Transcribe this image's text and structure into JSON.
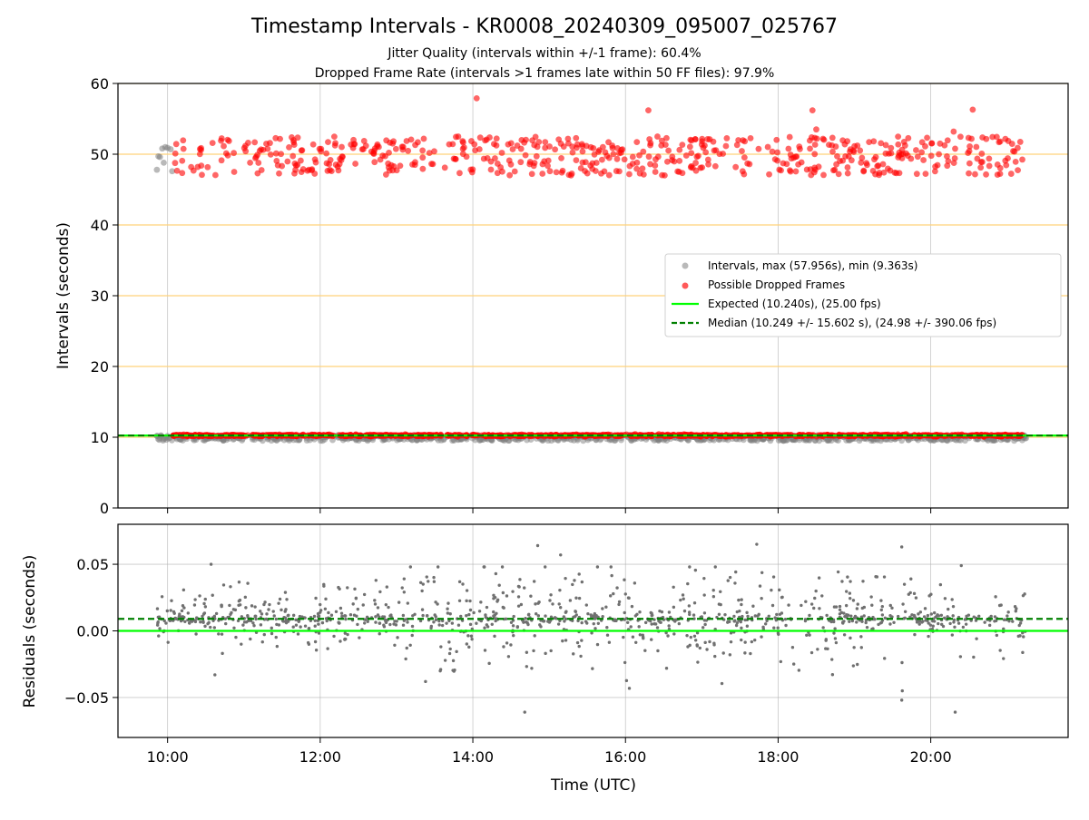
{
  "chart_data": [
    {
      "type": "scatter",
      "title": "Timestamp Intervals - KR0008_20240309_095007_025767",
      "subtitle_lines": [
        "Jitter Quality (intervals within +/-1 frame): 60.4%",
        "Dropped Frame Rate (intervals >1 frames late within 50 FF files): 97.9%"
      ],
      "xlabel": "",
      "ylabel": "Intervals (seconds)",
      "xlim_hours": [
        9.35,
        21.8
      ],
      "ylim": [
        0,
        60
      ],
      "x_ticks": [
        10,
        12,
        14,
        16,
        18,
        20
      ],
      "x_tick_labels": [
        "10:00",
        "12:00",
        "14:00",
        "16:00",
        "18:00",
        "20:00"
      ],
      "y_ticks": [
        0,
        10,
        20,
        30,
        40,
        50,
        60
      ],
      "y_tick_labels": [
        "0",
        "10",
        "20",
        "30",
        "40",
        "50",
        "60"
      ],
      "grid": true,
      "legend_position": "center-right",
      "series": [
        {
          "name": "Intervals, max (57.956s), min (9.363s)",
          "kind": "scatter",
          "color": "#808080",
          "band": {
            "x_start": 9.85,
            "x_end": 21.25,
            "y_min": 9.5,
            "y_max": 10.3
          },
          "early_points": [
            [
              9.86,
              47.8
            ],
            [
              9.88,
              49.7
            ],
            [
              9.9,
              49.6
            ],
            [
              9.93,
              50.8
            ],
            [
              9.95,
              48.8
            ],
            [
              9.97,
              51.0
            ],
            [
              10.0,
              50.9
            ],
            [
              10.04,
              50.7
            ],
            [
              10.06,
              47.6
            ]
          ]
        },
        {
          "name": "Possible Dropped Frames",
          "kind": "scatter",
          "color": "#ff0000",
          "band": {
            "x_start": 10.05,
            "x_end": 21.2,
            "y": 10.25
          },
          "high_cluster": {
            "x_start": 10.08,
            "x_end": 21.2,
            "y_min": 47.0,
            "y_max": 52.5
          },
          "outliers": [
            [
              14.05,
              57.9
            ],
            [
              16.3,
              56.2
            ],
            [
              18.45,
              56.2
            ],
            [
              20.55,
              56.3
            ],
            [
              18.5,
              53.5
            ],
            [
              20.3,
              53.2
            ]
          ]
        },
        {
          "name": "Expected (10.240s), (25.00 fps)",
          "kind": "hline",
          "value": 10.24,
          "color": "#00ff00",
          "style": "solid"
        },
        {
          "name": "Median (10.249 +/- 15.602 s), (24.98 +/- 390.06 fps)",
          "kind": "hline",
          "value": 10.249,
          "color": "#008000",
          "style": "dashed"
        }
      ],
      "reference_lines": [
        10,
        20,
        30,
        40,
        50,
        60
      ],
      "reference_line_color": "#ffd27a"
    },
    {
      "type": "scatter",
      "xlabel": "Time (UTC)",
      "ylabel": "Residuals (seconds)",
      "xlim_hours": [
        9.35,
        21.8
      ],
      "ylim": [
        -0.08,
        0.08
      ],
      "x_ticks": [
        10,
        12,
        14,
        16,
        18,
        20
      ],
      "x_tick_labels": [
        "10:00",
        "12:00",
        "14:00",
        "16:00",
        "18:00",
        "20:00"
      ],
      "y_ticks": [
        -0.05,
        0.0,
        0.05
      ],
      "y_tick_labels": [
        "−0.05",
        "0.00",
        "0.05"
      ],
      "grid": true,
      "series": [
        {
          "name": "residuals",
          "kind": "scatter",
          "color": "#707070",
          "x_range": [
            9.85,
            21.25
          ],
          "notable_points": [
            [
              10.57,
              0.05
            ],
            [
              10.62,
              -0.033
            ],
            [
              14.68,
              -0.061
            ],
            [
              14.85,
              0.064
            ],
            [
              15.15,
              0.057
            ],
            [
              17.72,
              0.065
            ],
            [
              19.62,
              0.063
            ],
            [
              19.62,
              -0.052
            ],
            [
              20.32,
              -0.061
            ],
            [
              20.4,
              0.049
            ],
            [
              13.38,
              -0.038
            ]
          ]
        },
        {
          "name": "expected",
          "kind": "hline",
          "value": 0.0,
          "color": "#00ff00",
          "style": "solid"
        },
        {
          "name": "median",
          "kind": "hline",
          "value": 0.009,
          "color": "#008000",
          "style": "dashed"
        }
      ]
    }
  ]
}
